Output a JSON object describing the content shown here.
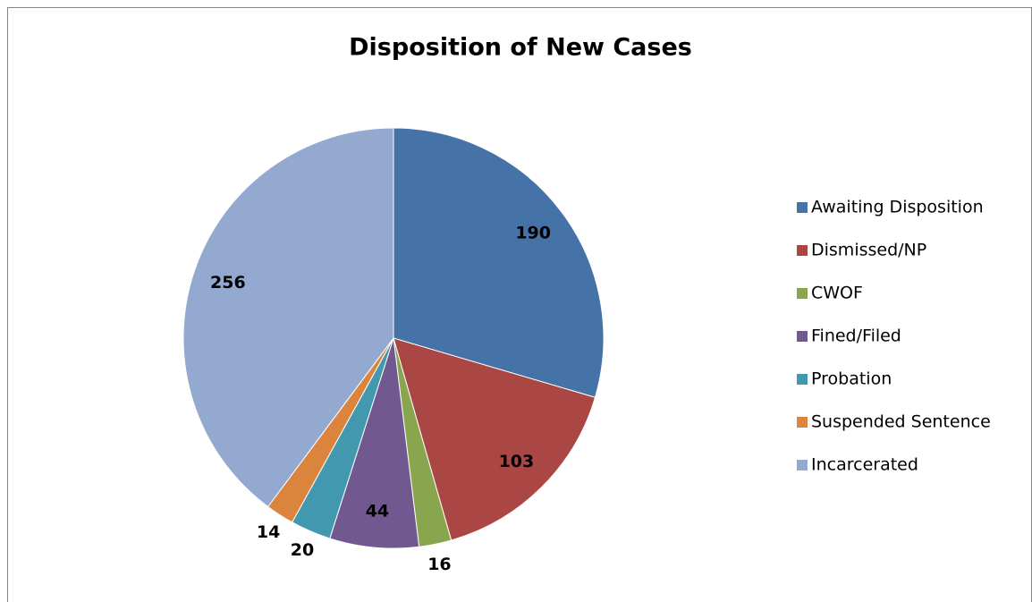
{
  "chart_data": {
    "type": "pie",
    "title": "Disposition of New Cases",
    "categories": [
      "Awaiting Disposition",
      "Dismissed/NP",
      "CWOF",
      "Fined/Filed",
      "Probation",
      "Suspended Sentence",
      "Incarcerated"
    ],
    "values": [
      190,
      103,
      16,
      44,
      20,
      14,
      256
    ],
    "colors": [
      "#4572a7",
      "#aa4643",
      "#89a54e",
      "#71588f",
      "#4198af",
      "#db843d",
      "#93a9cf"
    ],
    "legend": "right"
  }
}
